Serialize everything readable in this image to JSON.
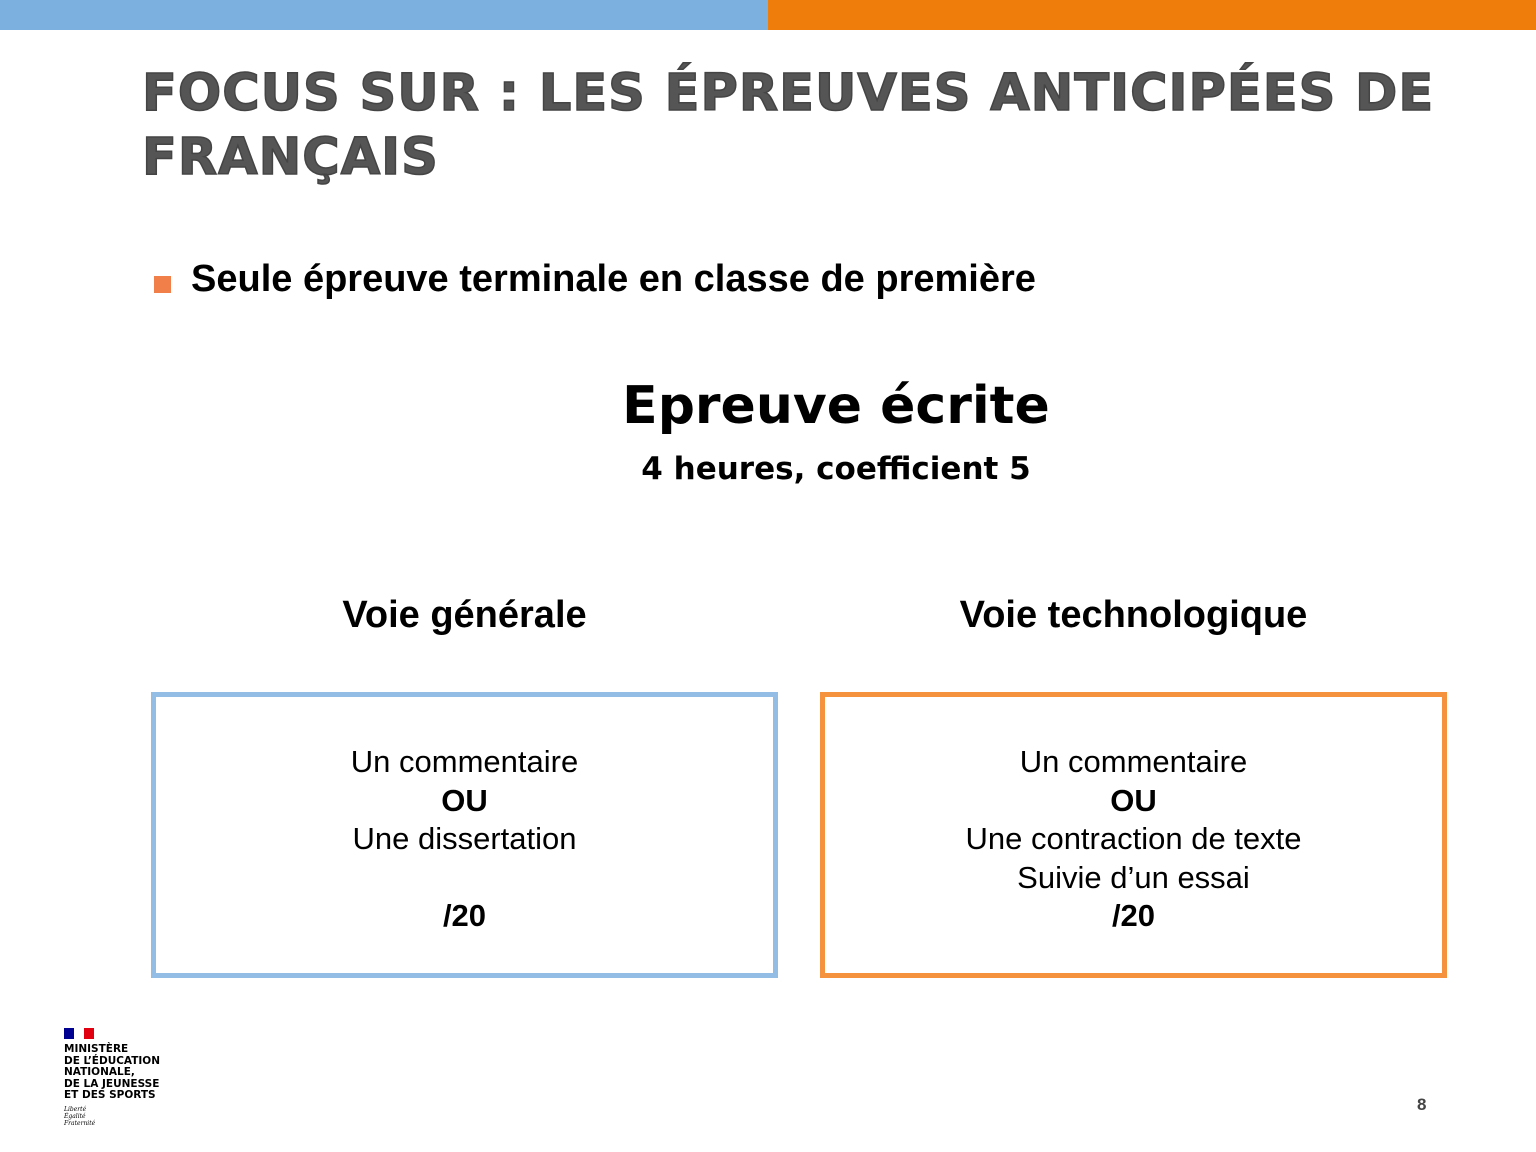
{
  "colors": {
    "accent_blue": "#7cb1df",
    "accent_orange": "#ee7d0c",
    "bullet": "#f07f4a"
  },
  "title": "FOCUS SUR : LES ÉPREUVES ANTICIPÉES DE FRANÇAIS",
  "bullet_text": "Seule épreuve terminale en classe de première",
  "exam": {
    "heading": "Epreuve écrite",
    "subheading": "4 heures, coefficient 5"
  },
  "columns": [
    {
      "title": "Voie générale",
      "lines": [
        "Un commentaire",
        "OU",
        "Une dissertation",
        "",
        "/20"
      ]
    },
    {
      "title": "Voie technologique",
      "lines": [
        "Un commentaire",
        "OU",
        "Une contraction de texte",
        "Suivie d’un essai",
        "/20"
      ]
    }
  ],
  "logo": {
    "lines": [
      "MINISTÈRE",
      "DE L’ÉDUCATION",
      "NATIONALE,",
      "DE LA JEUNESSE",
      "ET DES SPORTS"
    ],
    "motto": [
      "Liberté",
      "Égalité",
      "Fraternité"
    ]
  },
  "page_number": "8"
}
